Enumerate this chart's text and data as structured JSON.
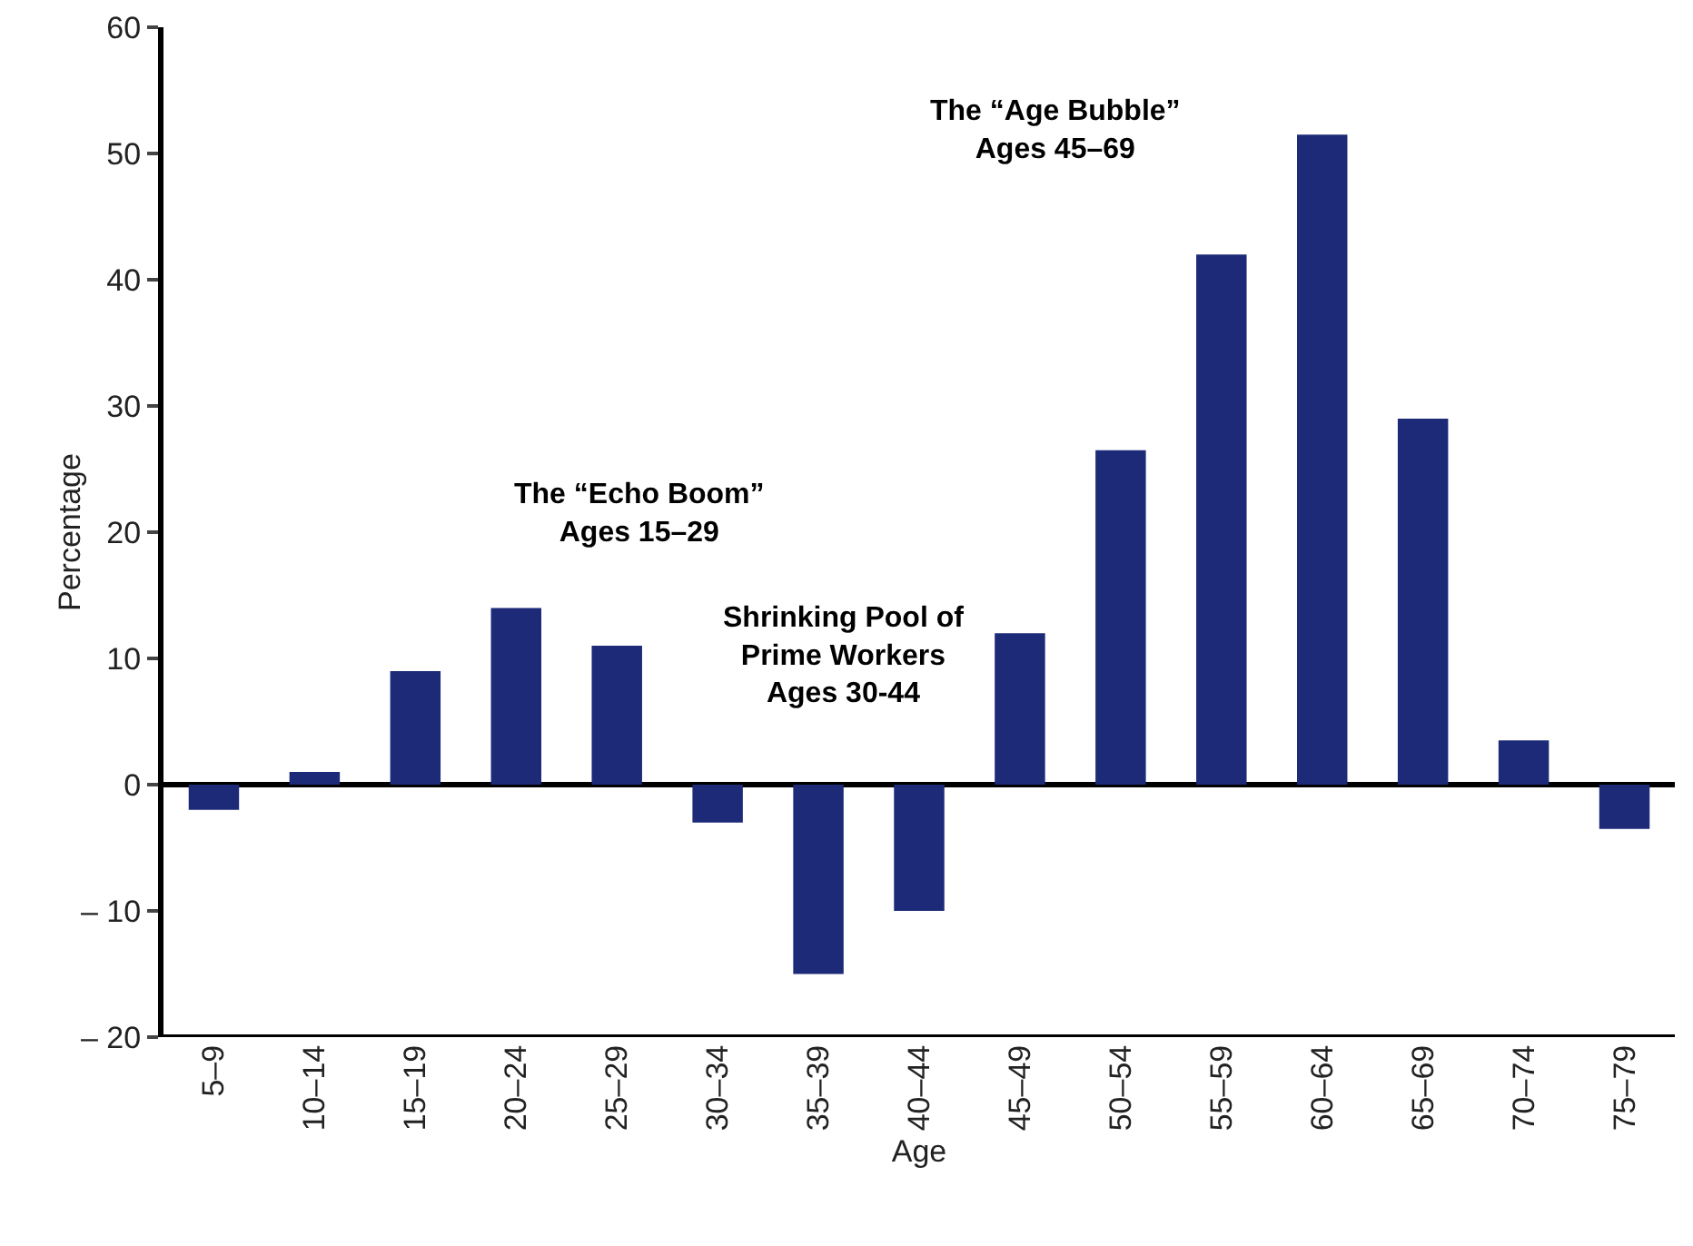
{
  "chart_data": {
    "type": "bar",
    "xlabel": "Age",
    "ylabel": "Percentage",
    "categories": [
      "5–9",
      "10–14",
      "15–19",
      "20–24",
      "25–29",
      "30–34",
      "35–39",
      "40–44",
      "45–49",
      "50–54",
      "55–59",
      "60–64",
      "65–69",
      "70–74",
      "75–79"
    ],
    "values": [
      -2,
      1,
      9,
      14,
      11,
      -3,
      -15,
      -10,
      12,
      26.5,
      42,
      51.5,
      29,
      3.5,
      -3.5
    ],
    "color": "#1c2a78",
    "ylim": [
      -20,
      60
    ],
    "yticks": [
      {
        "value": -20,
        "label": "– 20"
      },
      {
        "value": -10,
        "label": "– 10"
      },
      0,
      10,
      20,
      30,
      40,
      50,
      60
    ],
    "annotations": [
      "The “Echo Boom”\nAges 15–29",
      "Shrinking Pool of\nPrime Workers\nAges 30-44",
      "The “Age Bubble”\nAges 45–69"
    ]
  }
}
